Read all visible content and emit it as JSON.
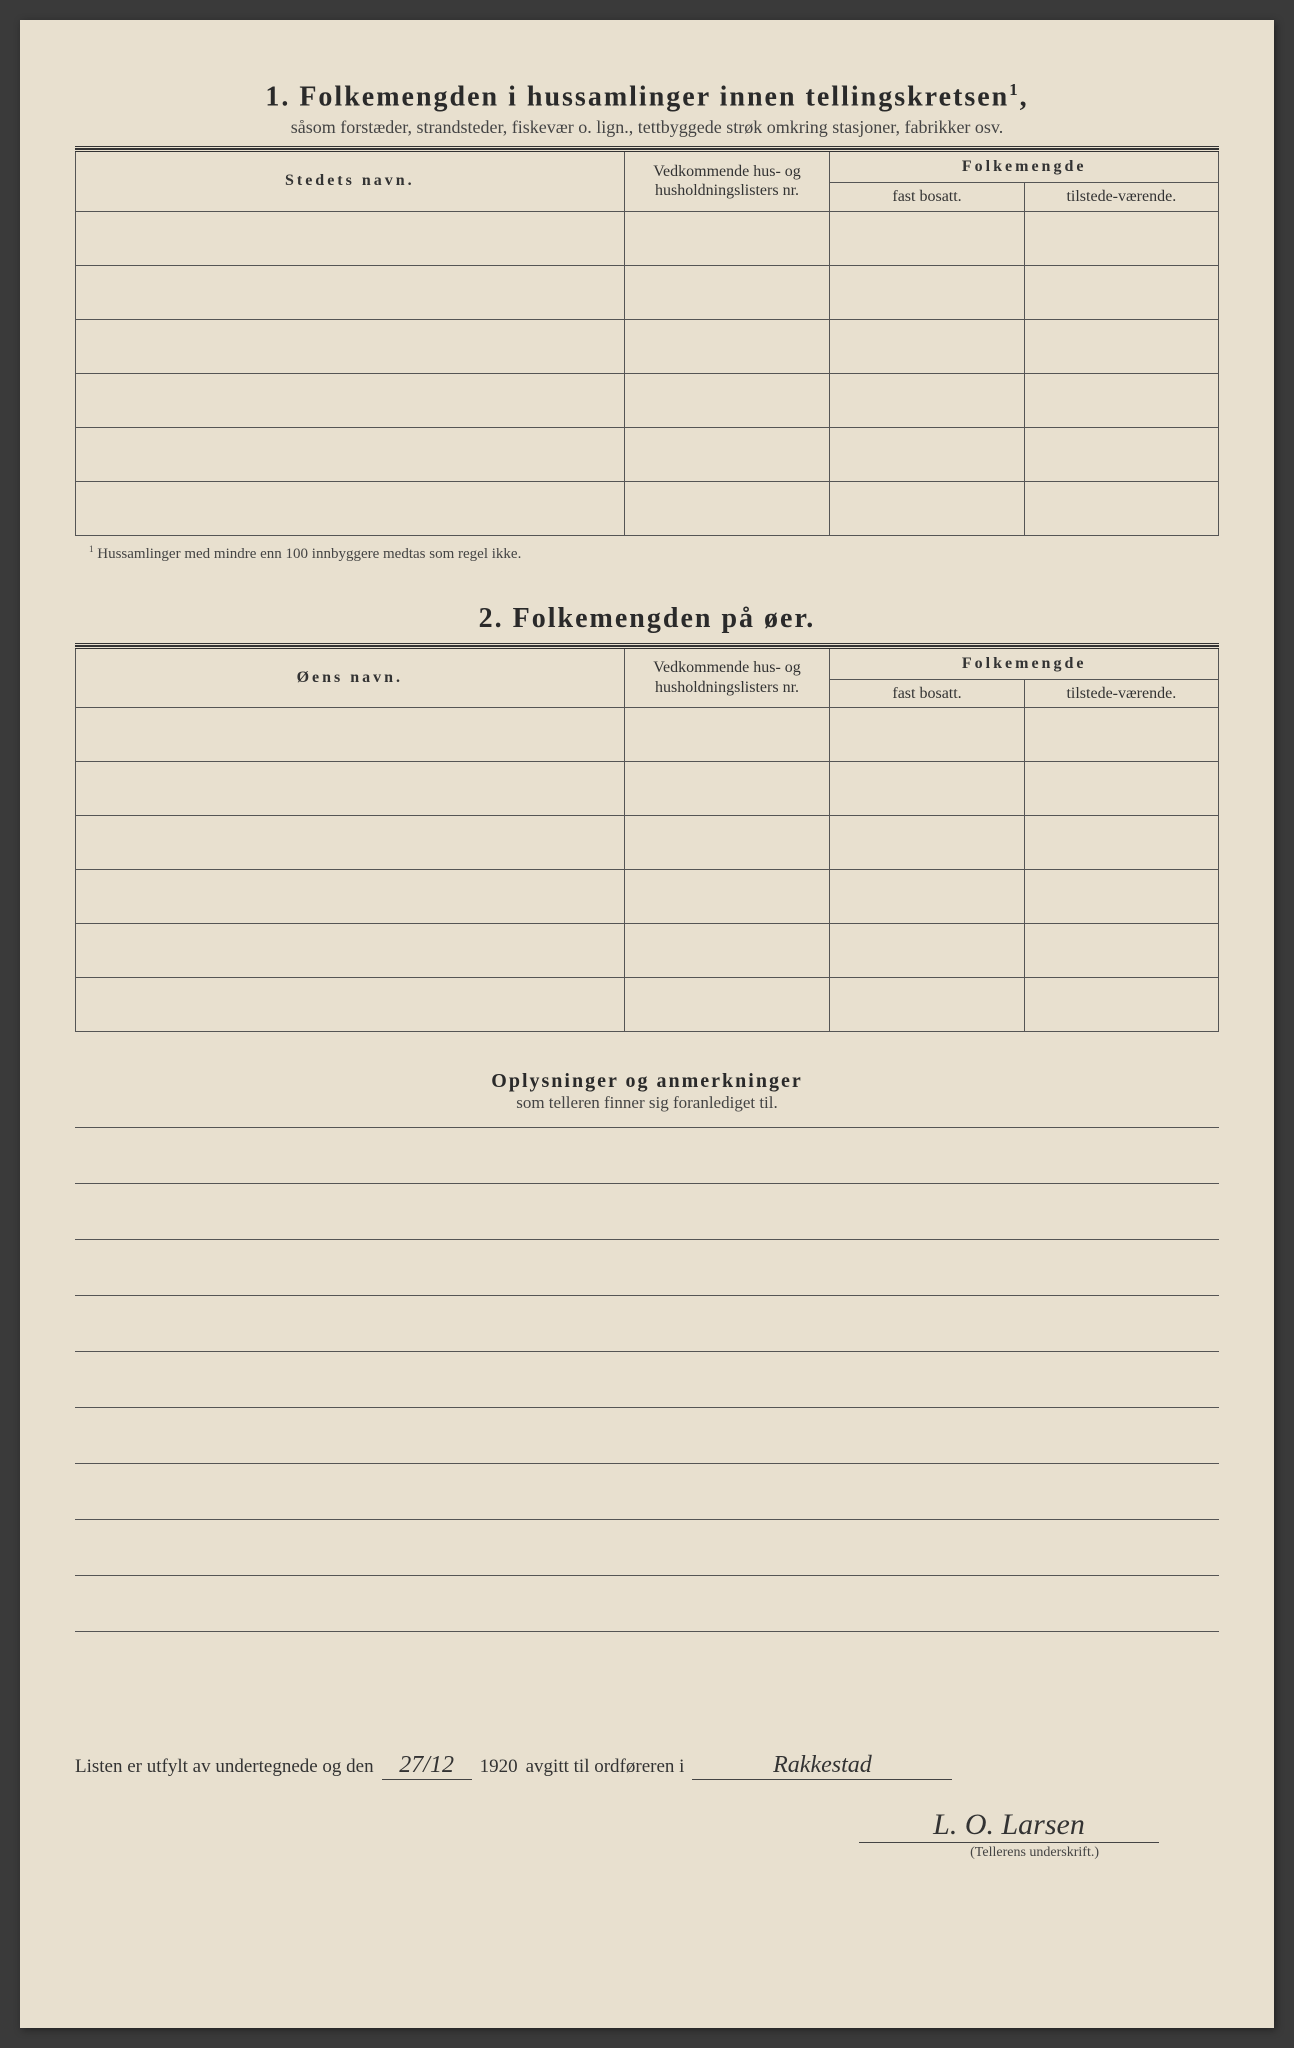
{
  "section1": {
    "number": "1.",
    "title": "Folkemengden i hussamlinger innen tellingskretsen",
    "title_sup": "1",
    "subtitle": "såsom forstæder, strandsteder, fiskevær o. lign., tettbyggede strøk omkring stasjoner, fabrikker osv.",
    "col_name": "Stedets navn.",
    "col_hus": "Vedkommende hus- og husholdningslisters nr.",
    "col_folkemengde": "Folkemengde",
    "col_fast": "fast bosatt.",
    "col_til": "tilstede-værende.",
    "rows": [
      "",
      "",
      "",
      "",
      "",
      ""
    ],
    "footnote_sup": "1",
    "footnote": "Hussamlinger med mindre enn 100 innbyggere medtas som regel ikke."
  },
  "section2": {
    "number": "2.",
    "title": "Folkemengden på øer.",
    "col_name": "Øens navn.",
    "col_hus": "Vedkommende hus- og husholdningslisters nr.",
    "col_folkemengde": "Folkemengde",
    "col_fast": "fast bosatt.",
    "col_til": "tilstede-værende.",
    "rows": [
      "",
      "",
      "",
      "",
      "",
      ""
    ]
  },
  "notes": {
    "title": "Oplysninger og anmerkninger",
    "subtitle": "som telleren finner sig foranlediget til.",
    "line_count": 9
  },
  "signature": {
    "prefix": "Listen er utfylt av undertegnede og den",
    "date": "27/12",
    "year": "1920",
    "middle": "avgitt til ordføreren i",
    "place": "Rakkestad",
    "name": "L. O. Larsen",
    "caption": "(Tellerens underskrift.)"
  },
  "style": {
    "paper_bg": "#e8e0cf",
    "ink": "#2a2a2a",
    "rule": "#555"
  }
}
